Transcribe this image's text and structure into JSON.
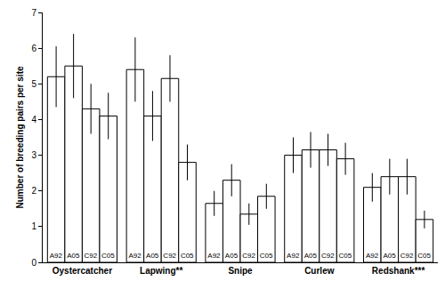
{
  "chart_data": {
    "type": "bar",
    "y_label": "Number of breeding pairs per site",
    "categories": [
      "Oystercatcher",
      "Lapwing**",
      "Snipe",
      "Curlew",
      "Redshank***"
    ],
    "series": [
      {
        "name": "A92",
        "color": "#ffffff",
        "values": [
          5.2,
          5.4,
          1.65,
          3.0,
          2.1
        ],
        "errors": [
          0.85,
          0.9,
          0.35,
          0.5,
          0.4
        ]
      },
      {
        "name": "A05",
        "color": "#ffffff",
        "values": [
          5.5,
          4.1,
          2.3,
          3.15,
          2.4
        ],
        "errors": [
          0.9,
          0.7,
          0.45,
          0.5,
          0.5
        ]
      },
      {
        "name": "C92",
        "color": "#ffffff",
        "values": [
          4.3,
          5.15,
          1.35,
          3.15,
          2.4
        ],
        "errors": [
          0.7,
          0.65,
          0.3,
          0.45,
          0.5
        ]
      },
      {
        "name": "C05",
        "color": "#ffffff",
        "values": [
          4.1,
          2.8,
          1.85,
          2.9,
          1.2
        ],
        "errors": [
          0.65,
          0.5,
          0.35,
          0.45,
          0.25
        ]
      }
    ],
    "ylim": [
      0,
      7
    ],
    "yticks": [
      0,
      1,
      2,
      3,
      4,
      5,
      6,
      7
    ],
    "grid": false
  }
}
